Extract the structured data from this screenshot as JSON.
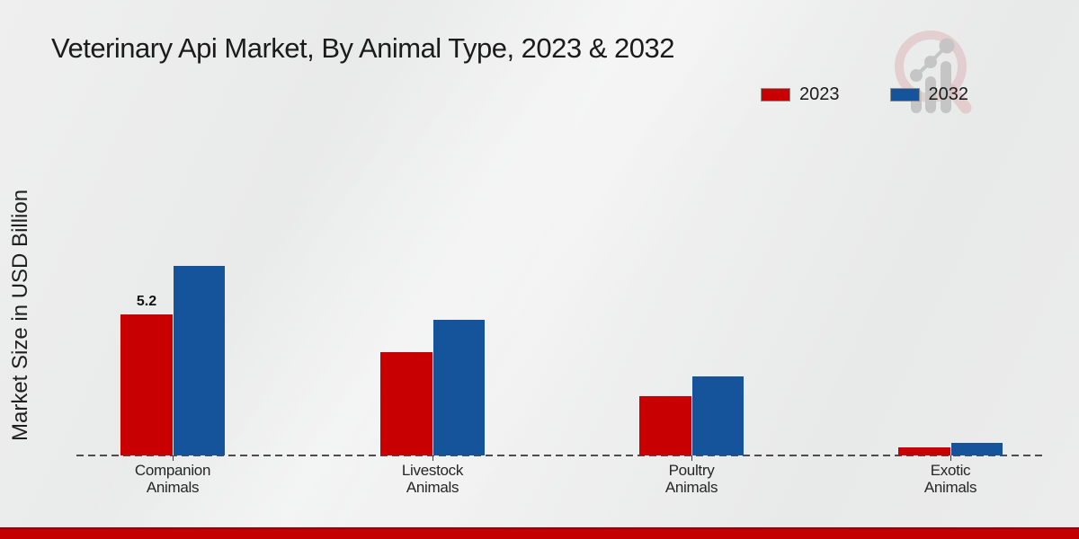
{
  "chart_data": {
    "type": "bar",
    "title": "Veterinary Api Market, By Animal Type, 2023 & 2032",
    "ylabel": "Market Size in USD Billion",
    "xlabel": "",
    "categories": [
      "Companion Animals",
      "Livestock Animals",
      "Poultry Animals",
      "Exotic Animals"
    ],
    "series": [
      {
        "name": "2023",
        "color": "#c80001",
        "values": [
          5.2,
          3.8,
          2.2,
          0.3
        ]
      },
      {
        "name": "2032",
        "color": "#15549a",
        "values": [
          7.0,
          5.0,
          2.9,
          0.45
        ]
      }
    ],
    "annotations": [
      {
        "series_index": 0,
        "category_index": 0,
        "text": "5.2"
      }
    ],
    "baseline": {
      "value": 0,
      "style": "dashed",
      "color": "#4d4d4d"
    },
    "legend_position": "top-right",
    "ylim": [
      0,
      7.5
    ],
    "gridlines": false
  },
  "watermark": {
    "icon": "magnifier-growth-chart-logo",
    "ring_color": "#ddb6b9",
    "bars_color": "#c5c5c5"
  },
  "footer": {
    "bar_color": "#c40000"
  }
}
